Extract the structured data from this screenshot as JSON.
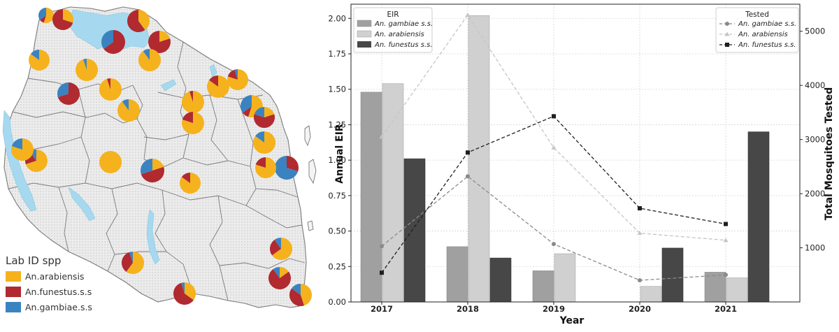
{
  "map_panel": {
    "legend_title": "Lab ID spp",
    "legend_items": [
      {
        "label": "An.arabiensis",
        "color": "#f5b21d"
      },
      {
        "label": "An.funestus.s.s",
        "color": "#b02a30"
      },
      {
        "label": "An.gambiae.s.s",
        "color": "#3b83c0"
      }
    ],
    "colors": {
      "land": "#ececec",
      "border": "#7a7a7a",
      "water": "#a6d9ef"
    },
    "sites": [
      {
        "arabiensis": 0.55,
        "funestus": 0.1,
        "gambiae": 0.35
      },
      {
        "arabiensis": 0.3,
        "funestus": 0.7,
        "gambiae": 0.0
      },
      {
        "arabiensis": 0.4,
        "funestus": 0.6,
        "gambiae": 0.0
      },
      {
        "arabiensis": 0.0,
        "funestus": 0.65,
        "gambiae": 0.35
      },
      {
        "arabiensis": 0.85,
        "funestus": 0.0,
        "gambiae": 0.15
      },
      {
        "arabiensis": 0.2,
        "funestus": 0.8,
        "gambiae": 0.0
      },
      {
        "arabiensis": 0.9,
        "funestus": 0.0,
        "gambiae": 0.1
      },
      {
        "arabiensis": 0.0,
        "funestus": 0.7,
        "gambiae": 0.3
      },
      {
        "arabiensis": 0.95,
        "funestus": 0.0,
        "gambiae": 0.05
      },
      {
        "arabiensis": 0.95,
        "funestus": 0.05,
        "gambiae": 0.0
      },
      {
        "arabiensis": 0.9,
        "funestus": 0.0,
        "gambiae": 0.1
      },
      {
        "arabiensis": 0.95,
        "funestus": 0.05,
        "gambiae": 0.0
      },
      {
        "arabiensis": 0.8,
        "funestus": 0.2,
        "gambiae": 0.0
      },
      {
        "arabiensis": 0.85,
        "funestus": 0.15,
        "gambiae": 0.0
      },
      {
        "arabiensis": 0.8,
        "funestus": 0.15,
        "gambiae": 0.05
      },
      {
        "arabiensis": 0.55,
        "funestus": 0.1,
        "gambiae": 0.35
      },
      {
        "arabiensis": 0.2,
        "funestus": 0.6,
        "gambiae": 0.2
      },
      {
        "arabiensis": 0.85,
        "funestus": 0.0,
        "gambiae": 0.15
      },
      {
        "arabiensis": 1.0,
        "funestus": 0.0,
        "gambiae": 0.0
      },
      {
        "arabiensis": 0.2,
        "funestus": 0.5,
        "gambiae": 0.3
      },
      {
        "arabiensis": 0.7,
        "funestus": 0.2,
        "gambiae": 0.1
      },
      {
        "arabiensis": 0.0,
        "funestus": 0.3,
        "gambiae": 0.7
      },
      {
        "arabiensis": 0.8,
        "funestus": 0.2,
        "gambiae": 0.0
      },
      {
        "arabiensis": 0.8,
        "funestus": 0.0,
        "gambiae": 0.2
      },
      {
        "arabiensis": 0.85,
        "funestus": 0.15,
        "gambiae": 0.0
      },
      {
        "arabiensis": 0.65,
        "funestus": 0.25,
        "gambiae": 0.1
      },
      {
        "arabiensis": 0.15,
        "funestus": 0.75,
        "gambiae": 0.1
      },
      {
        "arabiensis": 0.6,
        "funestus": 0.35,
        "gambiae": 0.05
      },
      {
        "arabiensis": 0.35,
        "funestus": 0.6,
        "gambiae": 0.05
      },
      {
        "arabiensis": 0.45,
        "funestus": 0.4,
        "gambiae": 0.15
      }
    ]
  },
  "chart_data": {
    "type": "bar",
    "categories": [
      "2017",
      "2018",
      "2019",
      "2020",
      "2021"
    ],
    "xlabel": "Year",
    "ylabel": "Annual EIR",
    "ylabel_right": "Total Mosquitoes Tested",
    "ylim": [
      0,
      2.1
    ],
    "ylim_right": [
      0,
      5500
    ],
    "yticks": [
      "0.00",
      "0.25",
      "0.50",
      "0.75",
      "1.00",
      "1.25",
      "1.50",
      "1.75",
      "2.00"
    ],
    "yticks_right": [
      "1000",
      "2000",
      "3000",
      "4000",
      "5000"
    ],
    "grid": true,
    "legend_eir": {
      "title": "EIR",
      "placement": "top-left",
      "series": [
        {
          "name": "An. gambiae s.s.",
          "color": "#a0a0a0",
          "values": [
            1.48,
            0.39,
            0.22,
            0.0,
            0.21
          ]
        },
        {
          "name": "An. arabiensis",
          "color": "#d0d0d0",
          "values": [
            1.54,
            2.02,
            0.34,
            0.11,
            0.17
          ]
        },
        {
          "name": "An. funestus s.s.",
          "color": "#474747",
          "values": [
            1.01,
            0.31,
            0.0,
            0.38,
            1.2
          ]
        }
      ]
    },
    "legend_tested": {
      "title": "Tested",
      "placement": "top-right",
      "series": [
        {
          "name": "An. gambiae s.s.",
          "color": "#8a8a8a",
          "marker": "circle",
          "values": [
            1030,
            2320,
            1070,
            400,
            500
          ]
        },
        {
          "name": "An. arabiensis",
          "color": "#c5c5c5",
          "marker": "triangle",
          "values": [
            3050,
            5300,
            2850,
            1270,
            1140
          ]
        },
        {
          "name": "An. funestus s.s.",
          "color": "#1f1f1f",
          "marker": "square",
          "values": [
            540,
            2760,
            3430,
            1730,
            1440
          ]
        }
      ]
    }
  }
}
